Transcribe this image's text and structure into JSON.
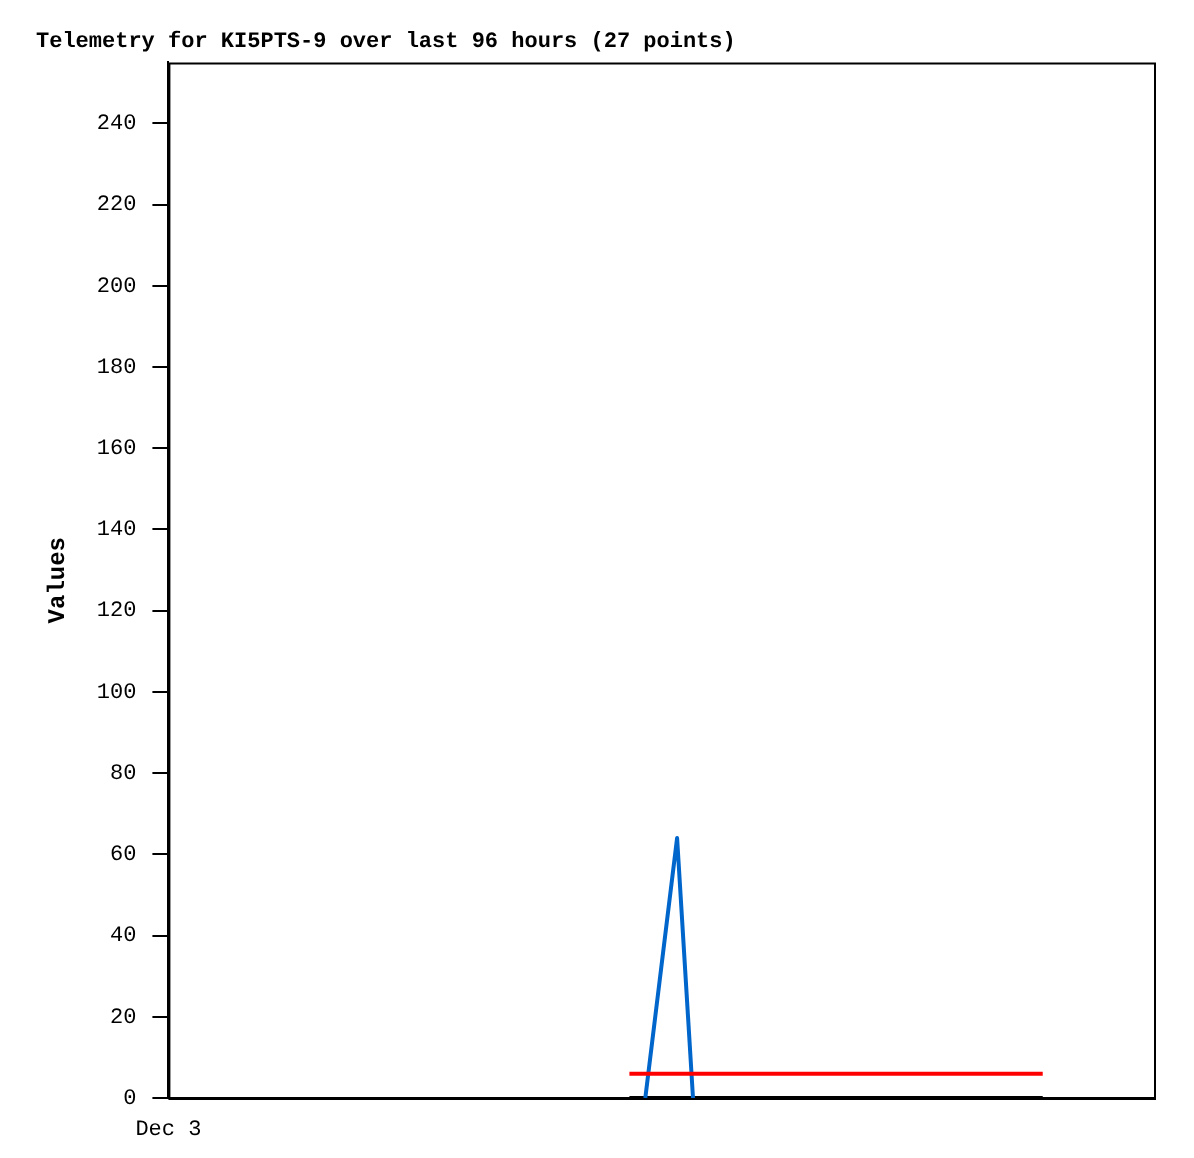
{
  "chart_data": {
    "type": "line",
    "title": "Telemetry for KI5PTS-9 over last 96 hours (27 points)",
    "ylabel": "Values",
    "annotations": [
      "Dec 3"
    ],
    "categories": [
      null,
      null,
      null,
      null,
      null,
      null,
      null,
      null,
      null,
      null,
      null,
      null,
      null,
      null,
      null,
      null,
      null,
      null,
      null,
      null,
      null,
      null,
      null,
      null,
      null,
      null,
      null,
      null,
      null,
      null,
      null,
      null,
      null,
      null,
      null,
      null,
      null,
      null,
      null,
      null,
      null,
      null,
      null,
      null,
      null,
      null,
      null,
      null,
      null,
      null,
      null,
      null,
      null,
      null,
      null,
      null,
      null,
      null,
      null,
      null,
      null,
      null,
      null
    ],
    "ylim": [
      0,
      255
    ],
    "yticks": [
      0,
      20,
      40,
      60,
      80,
      100,
      120,
      140,
      160,
      180,
      200,
      220,
      240
    ],
    "tick_labels": "y",
    "grid": false,
    "legend": false,
    "marker": "none",
    "line_style": "solid",
    "series": [
      {
        "color": "#ff0000",
        "values": [
          null,
          null,
          null,
          null,
          null,
          null,
          null,
          null,
          null,
          null,
          null,
          null,
          null,
          null,
          null,
          null,
          null,
          null,
          null,
          null,
          null,
          null,
          null,
          null,
          null,
          null,
          null,
          null,
          null,
          6,
          6,
          6,
          6,
          6,
          6,
          6,
          6,
          6,
          6,
          6,
          6,
          6,
          6,
          6,
          6,
          6,
          6,
          6,
          6,
          6,
          6,
          6,
          6,
          6,
          6,
          6,
          null,
          null,
          null,
          null,
          null,
          null,
          null
        ]
      },
      {
        "color": "#0066cc",
        "values": [
          null,
          null,
          null,
          null,
          null,
          null,
          null,
          null,
          null,
          null,
          null,
          null,
          null,
          null,
          null,
          null,
          null,
          null,
          null,
          null,
          null,
          null,
          null,
          null,
          null,
          null,
          null,
          null,
          null,
          null,
          0,
          32,
          64,
          0,
          null,
          null,
          null,
          null,
          null,
          null,
          null,
          null,
          null,
          null,
          null,
          null,
          null,
          null,
          null,
          null,
          null,
          null,
          null,
          null,
          null,
          null,
          null,
          null,
          null,
          null,
          null,
          null,
          null
        ]
      },
      {
        "color": "#000000",
        "values": [
          null,
          null,
          null,
          null,
          null,
          null,
          null,
          null,
          null,
          null,
          null,
          null,
          null,
          null,
          null,
          null,
          null,
          null,
          null,
          null,
          null,
          null,
          null,
          null,
          null,
          null,
          null,
          null,
          null,
          0,
          0,
          0,
          0,
          0,
          0,
          0,
          0,
          0,
          0,
          0,
          0,
          0,
          0,
          0,
          0,
          0,
          0,
          0,
          0,
          0,
          0,
          0,
          0,
          0,
          0,
          0,
          null,
          null,
          null,
          null,
          null,
          null,
          null
        ]
      }
    ]
  }
}
